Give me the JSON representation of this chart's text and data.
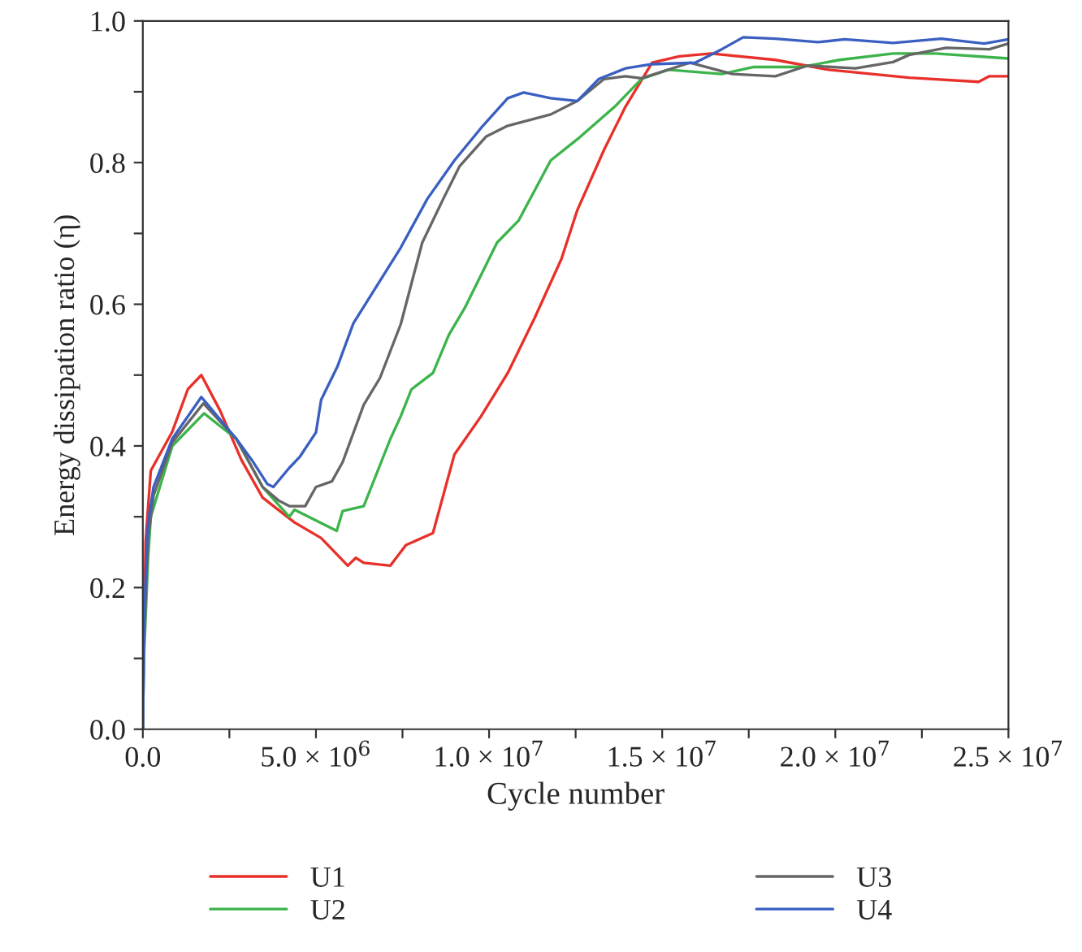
{
  "chart_data": {
    "type": "line",
    "xlabel": "Cycle number",
    "ylabel": "Energy dissipation ratio (η)",
    "xlim": [
      0,
      25000000
    ],
    "ylim": [
      0,
      1.0
    ],
    "xticks": [
      {
        "value": 0,
        "label": "0.0"
      },
      {
        "value": 2500000,
        "label": null
      },
      {
        "value": 5000000,
        "label": "5.0 × 10$^{6}$"
      },
      {
        "value": 7500000,
        "label": null
      },
      {
        "value": 10000000,
        "label": "1.0 × 10$^{7}$"
      },
      {
        "value": 12500000,
        "label": null
      },
      {
        "value": 15000000,
        "label": "1.5 × 10$^{7}$"
      },
      {
        "value": 17500000,
        "label": null
      },
      {
        "value": 20000000,
        "label": "2.0 × 10$^{7}$"
      },
      {
        "value": 22500000,
        "label": null
      },
      {
        "value": 25000000,
        "label": "2.5 × 10$^{7}$"
      }
    ],
    "yticks": [
      {
        "value": 0,
        "label": "0.0"
      },
      {
        "value": 0.1,
        "label": null
      },
      {
        "value": 0.2,
        "label": "0.2"
      },
      {
        "value": 0.3,
        "label": null
      },
      {
        "value": 0.4,
        "label": "0.4"
      },
      {
        "value": 0.5,
        "label": null
      },
      {
        "value": 0.6,
        "label": "0.6"
      },
      {
        "value": 0.7,
        "label": null
      },
      {
        "value": 0.8,
        "label": "0.8"
      },
      {
        "value": 0.9,
        "label": null
      },
      {
        "value": 1.0,
        "label": "1.0"
      }
    ],
    "grid": false,
    "legend": "bottom",
    "marker": "none",
    "line_style": "solid",
    "series": [
      {
        "name": "U1",
        "color": "#e8302a",
        "x": [
          0,
          30000,
          80000,
          230000,
          850000,
          1300000,
          1690000,
          2230000,
          2850000,
          3460000,
          4380000,
          5150000,
          5920000,
          6150000,
          6380000,
          7150000,
          7600000,
          8380000,
          9000000,
          9770000,
          10540000,
          11310000,
          12090000,
          12550000,
          13320000,
          13940000,
          14710000,
          15490000,
          16410000,
          18270000,
          19810000,
          22130000,
          24140000,
          24450000,
          25000000
        ],
        "values": [
          0,
          0.11,
          0.265,
          0.365,
          0.42,
          0.48,
          0.5,
          0.45,
          0.38,
          0.327,
          0.292,
          0.27,
          0.231,
          0.242,
          0.235,
          0.231,
          0.26,
          0.277,
          0.388,
          0.442,
          0.503,
          0.58,
          0.664,
          0.733,
          0.818,
          0.879,
          0.941,
          0.95,
          0.954,
          0.945,
          0.931,
          0.92,
          0.914,
          0.922,
          0.922
        ]
      },
      {
        "name": "U2",
        "color": "#3cb44b",
        "x": [
          0,
          30000,
          150000,
          230000,
          850000,
          1770000,
          2700000,
          3460000,
          4230000,
          4380000,
          5600000,
          5770000,
          6380000,
          7150000,
          7450000,
          7760000,
          8380000,
          8840000,
          9300000,
          10230000,
          10850000,
          11780000,
          12550000,
          13630000,
          14400000,
          15180000,
          16720000,
          17650000,
          19040000,
          20120000,
          21670000,
          22900000,
          25000000
        ],
        "values": [
          0,
          0.1,
          0.24,
          0.3,
          0.4,
          0.446,
          0.41,
          0.342,
          0.3,
          0.31,
          0.28,
          0.308,
          0.315,
          0.41,
          0.442,
          0.48,
          0.503,
          0.557,
          0.595,
          0.687,
          0.718,
          0.803,
          0.833,
          0.879,
          0.918,
          0.931,
          0.925,
          0.935,
          0.935,
          0.945,
          0.954,
          0.954,
          0.947
        ]
      },
      {
        "name": "U3",
        "color": "#666666",
        "x": [
          0,
          30000,
          150000,
          310000,
          850000,
          1750000,
          2700000,
          3460000,
          3920000,
          4230000,
          4690000,
          5000000,
          5460000,
          5770000,
          6380000,
          6850000,
          7450000,
          8070000,
          8680000,
          9150000,
          9920000,
          10540000,
          11780000,
          12550000,
          13320000,
          13940000,
          14400000,
          15800000,
          17030000,
          18270000,
          19200000,
          20580000,
          21670000,
          22130000,
          23200000,
          24450000,
          25000000
        ],
        "values": [
          0,
          0.12,
          0.27,
          0.33,
          0.405,
          0.46,
          0.41,
          0.342,
          0.323,
          0.315,
          0.315,
          0.342,
          0.35,
          0.377,
          0.458,
          0.496,
          0.572,
          0.687,
          0.749,
          0.795,
          0.837,
          0.852,
          0.868,
          0.887,
          0.918,
          0.922,
          0.919,
          0.941,
          0.925,
          0.922,
          0.937,
          0.933,
          0.942,
          0.952,
          0.962,
          0.96,
          0.968
        ]
      },
      {
        "name": "U4",
        "color": "#3a5fc0",
        "x": [
          0,
          30000,
          150000,
          310000,
          850000,
          1690000,
          2700000,
          3150000,
          3600000,
          3770000,
          4230000,
          4540000,
          5000000,
          5150000,
          5620000,
          6080000,
          7450000,
          8220000,
          9000000,
          9770000,
          10540000,
          11000000,
          11780000,
          12550000,
          13170000,
          13940000,
          14710000,
          15950000,
          16720000,
          17340000,
          18270000,
          19500000,
          20270000,
          21670000,
          23060000,
          24300000,
          25000000
        ],
        "values": [
          0,
          0.15,
          0.29,
          0.342,
          0.41,
          0.469,
          0.41,
          0.38,
          0.346,
          0.342,
          0.369,
          0.385,
          0.419,
          0.465,
          0.512,
          0.573,
          0.68,
          0.749,
          0.803,
          0.849,
          0.891,
          0.899,
          0.891,
          0.887,
          0.918,
          0.933,
          0.939,
          0.941,
          0.96,
          0.977,
          0.975,
          0.97,
          0.974,
          0.969,
          0.975,
          0.968,
          0.974
        ]
      }
    ]
  }
}
